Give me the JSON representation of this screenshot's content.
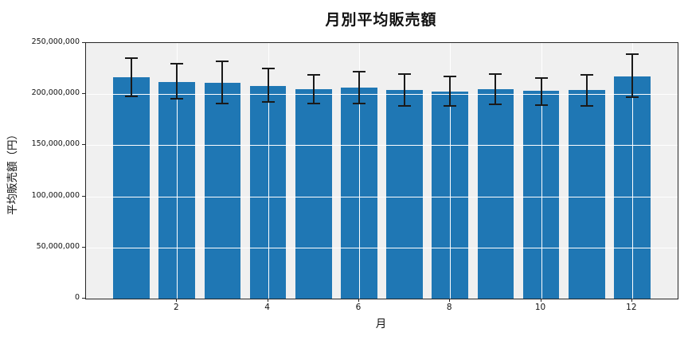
{
  "chart_data": {
    "type": "bar",
    "title": "月別平均販売額",
    "xlabel": "月",
    "ylabel": "平均販売額（円）",
    "categories": [
      1,
      2,
      3,
      4,
      5,
      6,
      7,
      8,
      9,
      10,
      11,
      12
    ],
    "values": [
      216300000,
      212000000,
      210800000,
      208000000,
      205000000,
      206300000,
      204300000,
      202300000,
      204600000,
      202900000,
      204100000,
      217000000
    ],
    "error_top": [
      235500000,
      229500000,
      232000000,
      225000000,
      218500000,
      222000000,
      219300000,
      217000000,
      219800000,
      215400000,
      219000000,
      239300000
    ],
    "error_bottom": [
      197500000,
      195500000,
      191000000,
      192500000,
      190500000,
      190500000,
      188500000,
      188500000,
      190400000,
      189300000,
      188500000,
      196900000
    ],
    "xlim": [
      0,
      13
    ],
    "ylim": [
      0,
      250000000
    ],
    "yticks": [
      {
        "value": 0,
        "label": "0"
      },
      {
        "value": 50000000,
        "label": "50,000,000"
      },
      {
        "value": 100000000,
        "label": "100,000,000"
      },
      {
        "value": 150000000,
        "label": "150,000,000"
      },
      {
        "value": 200000000,
        "label": "200,000,000"
      },
      {
        "value": 250000000,
        "label": "250,000,000"
      }
    ],
    "xticks": [
      {
        "value": 2,
        "label": "2"
      },
      {
        "value": 4,
        "label": "4"
      },
      {
        "value": 6,
        "label": "6"
      },
      {
        "value": 8,
        "label": "8"
      },
      {
        "value": 10,
        "label": "10"
      },
      {
        "value": 12,
        "label": "12"
      }
    ],
    "grid": true,
    "legend": null,
    "bar_color": "#1f77b4",
    "error_color": "#1a1a1a",
    "plot_background": "#f0f0f0",
    "figure_background": "#ffffff",
    "grid_color": "#ffffff",
    "bar_width_units": 0.8
  }
}
